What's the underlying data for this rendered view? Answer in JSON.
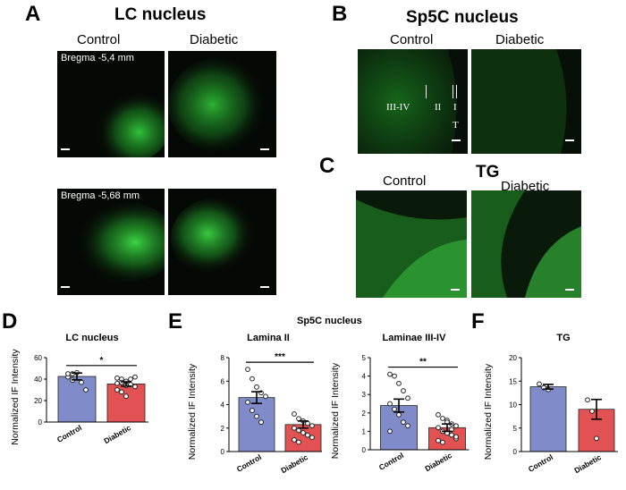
{
  "panels": {
    "A": {
      "letter": "A",
      "title": "LC nucleus",
      "col1": "Control",
      "col2": "Diabetic",
      "bregma1": "Bregma -5,4 mm",
      "bregma2": "Bregma -5,68 mm"
    },
    "B": {
      "letter": "B",
      "title": "Sp5C nucleus",
      "col1": "Control",
      "col2": "Diabetic",
      "lamina_34": "III-IV",
      "lamina_2": "II",
      "lamina_1": "I",
      "tract": "T"
    },
    "C": {
      "letter": "C",
      "title": "TG",
      "col1": "Control",
      "col2": "Diabetic"
    },
    "D": {
      "letter": "D"
    },
    "E": {
      "letter": "E",
      "group_title": "Sp5C nucleus"
    },
    "F": {
      "letter": "F"
    }
  },
  "colors": {
    "control": "#7f8cc9",
    "diabetic": "#e35252",
    "tissue_green": "#2fd03a"
  },
  "chart_data": [
    {
      "id": "D",
      "type": "bar",
      "title": "LC nucleus",
      "ylabel": "Normalized IF Intensity",
      "categories": [
        "Control",
        "Diabetic"
      ],
      "values": [
        42.5,
        35.5
      ],
      "errors": [
        3.2,
        2.0
      ],
      "ylim": [
        0,
        60
      ],
      "yticks": [
        0,
        20,
        40,
        60
      ],
      "significance": "*",
      "points": [
        [
          42,
          45,
          46,
          37,
          30,
          45,
          39
        ],
        [
          41,
          40,
          38,
          35,
          33,
          30,
          28,
          24,
          40,
          42,
          36,
          37,
          34
        ]
      ]
    },
    {
      "id": "E1",
      "type": "bar",
      "title": "Lamina II",
      "ylabel": "Normalized IF Intensity",
      "categories": [
        "Control",
        "Diabetic"
      ],
      "values": [
        4.6,
        2.3
      ],
      "errors": [
        0.5,
        0.3
      ],
      "ylim": [
        0,
        8
      ],
      "yticks": [
        0,
        2,
        4,
        6,
        8
      ],
      "significance": "***",
      "points": [
        [
          7.0,
          6.2,
          5.5,
          5.0,
          4.7,
          4.2,
          3.5,
          3.0,
          2.5
        ],
        [
          3.2,
          2.8,
          2.6,
          2.4,
          2.2,
          2.0,
          1.8,
          1.6,
          1.4,
          1.2,
          1.0,
          0.8
        ]
      ]
    },
    {
      "id": "E2",
      "type": "bar",
      "title": "Laminae III-IV",
      "ylabel": "Normalized IF Intensity",
      "categories": [
        "Control",
        "Diabetic"
      ],
      "values": [
        2.4,
        1.2
      ],
      "errors": [
        0.35,
        0.2
      ],
      "ylim": [
        0,
        5
      ],
      "yticks": [
        0,
        1,
        2,
        3,
        4,
        5
      ],
      "significance": "**",
      "points": [
        [
          4.1,
          4.0,
          3.6,
          3.2,
          2.8,
          2.5,
          2.2,
          1.9,
          1.5,
          1.3,
          1.0
        ],
        [
          1.9,
          1.7,
          1.6,
          1.4,
          1.3,
          1.2,
          1.0,
          0.9,
          0.8,
          0.6,
          0.5,
          0.4,
          1.5,
          1.1,
          0.7
        ]
      ]
    },
    {
      "id": "F",
      "type": "bar",
      "title": "TG",
      "ylabel": "Normalized IF Intensity",
      "categories": [
        "Control",
        "Diabetic"
      ],
      "values": [
        13.8,
        9.0
      ],
      "errors": [
        0.5,
        2.1
      ],
      "ylim": [
        0,
        20
      ],
      "yticks": [
        0,
        5,
        10,
        15,
        20
      ],
      "significance": "",
      "points": [
        [
          14.4,
          13.6,
          13.2
        ],
        [
          11.0,
          8.6,
          2.8
        ]
      ]
    }
  ]
}
